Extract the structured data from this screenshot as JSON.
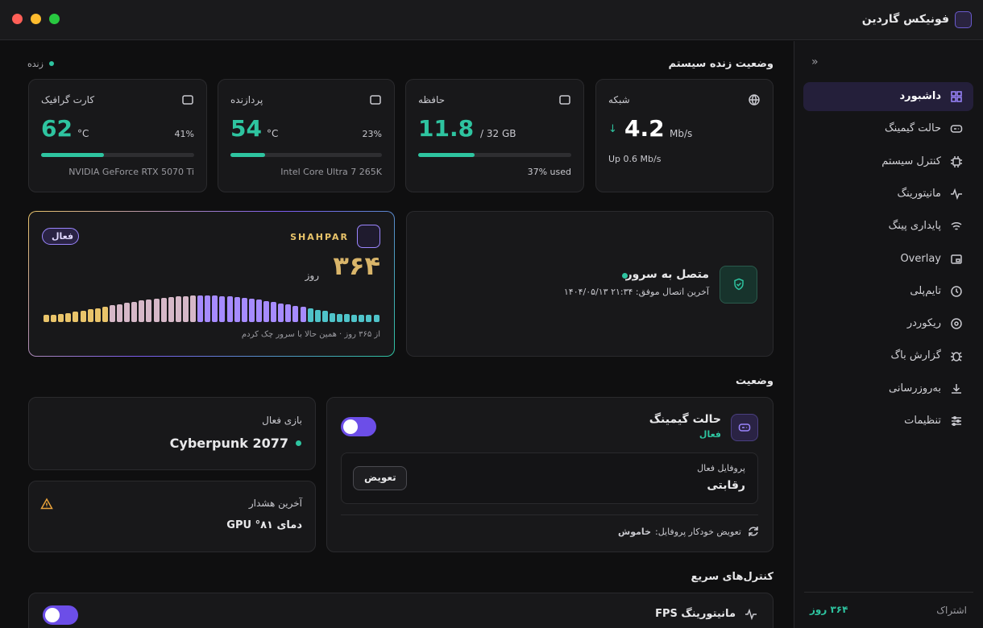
{
  "window": {
    "title": "فونیکس گاردین"
  },
  "sidebar": {
    "items": [
      "داشبورد",
      "حالت گیمینگ",
      "کنترل سیستم",
      "مانیتورینگ",
      "پایداری پینگ",
      "Overlay",
      "تایم‌پلی",
      "ریکوردر",
      "گزارش باگ",
      "به‌روزرسانی",
      "تنظیمات"
    ],
    "subscription_label": "اشتراک",
    "subscription_value": "۳۶۴ روز"
  },
  "live": {
    "title": "وضعیت زنده سیستم",
    "status": "زنده",
    "cards": [
      {
        "title": "شبکه",
        "value": 4.2,
        "unit": "Mb/s",
        "detail": "Up 0.6 Mb/s"
      },
      {
        "title": "حافظه",
        "value": 11.8,
        "unit": "/ 32 GB",
        "usage": 37,
        "usage_label": "37% used"
      },
      {
        "title": "پردازنده",
        "value": 54,
        "unit": "°C",
        "usage": 23,
        "usage_label": "23%",
        "detail": "Intel Core Ultra 7 265K"
      },
      {
        "title": "کارت گرافیک",
        "value": 62,
        "unit": "°C",
        "usage": 41,
        "usage_label": "41%",
        "detail": "NVIDIA GeForce RTX 5070 Ti"
      }
    ]
  },
  "license": {
    "badge": "فعال",
    "brand": "SHAHPAR",
    "days": "۳۶۴",
    "days_unit": "روز",
    "caption": "از ۳۶۵ روز · همین حالا با سرور چک کردم"
  },
  "server": {
    "title": "متصل به سرور",
    "subtitle": "آخرین اتصال موفق: ۲۱:۳۴ ۱۴۰۴/۰۵/۱۳"
  },
  "status": {
    "title": "وضعیت",
    "gaming": {
      "title": "حالت گیمینگ",
      "state": "فعال",
      "profile_label": "پروفایل فعال",
      "profile": "رقابتی",
      "button": "تعویض",
      "auto_label": "تعویض خودکار پروفایل:",
      "auto_value": "خاموش"
    },
    "game": {
      "label": "بازی فعال",
      "name": "Cyberpunk 2077"
    },
    "alert": {
      "label": "آخرین هشدار",
      "text": "دمای ۸۱° GPU"
    }
  },
  "quick": {
    "title": "کنترل‌های سریع",
    "items": [
      "مانیتورینگ FPS"
    ]
  }
}
